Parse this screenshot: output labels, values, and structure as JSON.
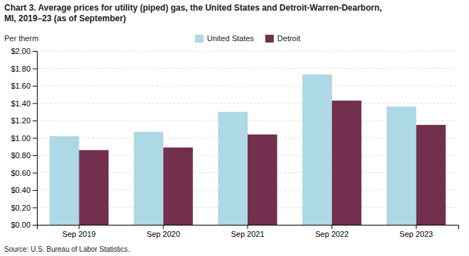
{
  "chart_data": {
    "type": "bar",
    "title": [
      "Chart 3. Average prices for utility (piped) gas, the United States and Detroit-Warren-Dearborn,",
      "MI, 2019–23 (as of September)"
    ],
    "ylabel": "Per therm",
    "source": "Source: U.S. Bureau of Labor Statistics.",
    "categories": [
      "Sep 2019",
      "Sep 2020",
      "Sep 2021",
      "Sep 2022",
      "Sep 2023"
    ],
    "series": [
      {
        "name": "United States",
        "color": "#ADD8E6",
        "values": [
          1.02,
          1.07,
          1.3,
          1.73,
          1.36
        ]
      },
      {
        "name": "Detroit",
        "color": "#722F4E",
        "values": [
          0.86,
          0.89,
          1.04,
          1.43,
          1.15
        ]
      }
    ],
    "ylim": [
      0.0,
      2.0
    ],
    "yticks": [
      {
        "value": 0.0,
        "label": "$0.00"
      },
      {
        "value": 0.2,
        "label": "$0.20"
      },
      {
        "value": 0.4,
        "label": "$0.40"
      },
      {
        "value": 0.6,
        "label": "$0.60"
      },
      {
        "value": 0.8,
        "label": "$0.80"
      },
      {
        "value": 1.0,
        "label": "$1.00"
      },
      {
        "value": 1.2,
        "label": "$1.20"
      },
      {
        "value": 1.4,
        "label": "$1.40"
      },
      {
        "value": 1.6,
        "label": "$1.60"
      },
      {
        "value": 1.8,
        "label": "$1.80"
      },
      {
        "value": 2.0,
        "label": "$2.00"
      }
    ],
    "grid": true,
    "legend": "top"
  }
}
